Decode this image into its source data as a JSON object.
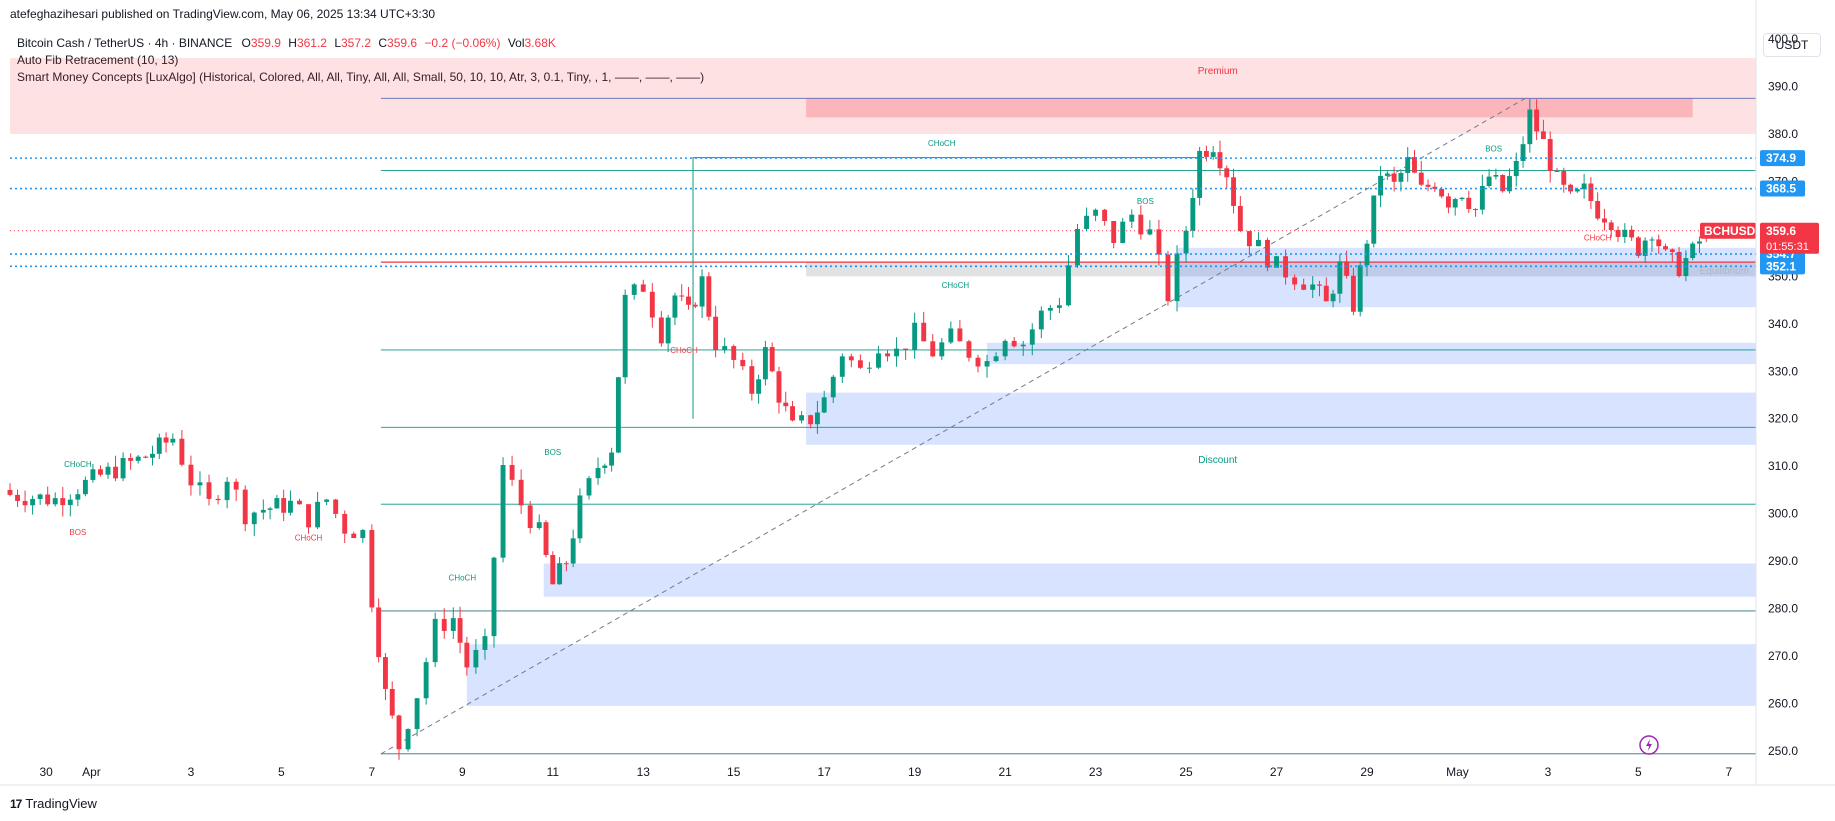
{
  "header": {
    "publisher": "atefeghazihesari published on TradingView.com, May 06, 2025 13:34 UTC+3:30"
  },
  "legend": {
    "symbol": "Bitcoin Cash / TetherUS · 4h · BINANCE",
    "o_label": "O",
    "o_value": "359.9",
    "h_label": "H",
    "h_value": "361.2",
    "l_label": "L",
    "l_value": "357.2",
    "c_label": "C",
    "c_value": "359.6",
    "change": "−0.2 (−0.06%)",
    "vol_label": "Vol",
    "vol_value": "3.68K",
    "indicator1": "Auto Fib Retracement (10, 13)",
    "indicator2": "Smart Money Concepts [LuxAlgo] (Historical, Colored, All, All, Tiny, All, All, Small, 50, 10, 10, Atr, 3, 0.1, Tiny, , 1, ——, ——, ——)"
  },
  "currency": "USDT",
  "footer": {
    "brand": "TradingView",
    "mark": "17"
  },
  "colors": {
    "up": "#089981",
    "down": "#f23645",
    "blue": "#2962ff",
    "tag_blue": "#2196f3",
    "tag_red": "#f23645"
  },
  "chart_data": {
    "type": "candlestick",
    "ylim": [
      246,
      404
    ],
    "xlim": [
      -0.4,
      8.1
    ],
    "y_ticks": [
      250,
      260,
      270,
      280,
      290,
      300,
      310,
      320,
      330,
      340,
      350,
      360,
      370,
      380,
      390,
      400
    ],
    "y_tick_labels": [
      "250.0",
      "260.0",
      "270.0",
      "280.0",
      "290.0",
      "300.0",
      "310.0",
      "320.0",
      "330.0",
      "340.0",
      "350.0",
      "360.0",
      "370.0",
      "380.0",
      "390.0",
      "400.0"
    ],
    "x_ticks": [
      {
        "label": "30",
        "day": -0.2
      },
      {
        "label": "Apr",
        "day": 0.8
      },
      {
        "label": "3",
        "day": 3
      },
      {
        "label": "5",
        "day": 5
      },
      {
        "label": "7",
        "day": 7
      },
      {
        "label": "9",
        "day": 9
      },
      {
        "label": "11",
        "day": 11
      },
      {
        "label": "13",
        "day": 13
      },
      {
        "label": "15",
        "day": 15
      },
      {
        "label": "17",
        "day": 17
      },
      {
        "label": "19",
        "day": 19
      },
      {
        "label": "21",
        "day": 21
      },
      {
        "label": "23",
        "day": 23
      },
      {
        "label": "25",
        "day": 25
      },
      {
        "label": "27",
        "day": 27
      },
      {
        "label": "29",
        "day": 29
      },
      {
        "label": "May",
        "day": 31
      },
      {
        "label": "3",
        "day": 33
      },
      {
        "label": "5",
        "day": 35
      },
      {
        "label": "7",
        "day": 37
      }
    ],
    "x_axis_days": [
      -1,
      37.6
    ],
    "close_path": [
      [
        -1,
        304
      ],
      [
        0,
        303
      ],
      [
        1,
        308
      ],
      [
        2,
        312
      ],
      [
        2.6,
        316
      ],
      [
        3,
        307
      ],
      [
        3.4,
        302
      ],
      [
        3.8,
        308
      ],
      [
        4.2,
        300
      ],
      [
        4.6,
        301
      ],
      [
        5.2,
        302
      ],
      [
        5.6,
        299
      ],
      [
        6,
        303
      ],
      [
        6.4,
        297
      ],
      [
        6.8,
        296
      ],
      [
        7,
        282
      ],
      [
        7.3,
        262
      ],
      [
        7.6,
        251
      ],
      [
        8,
        262
      ],
      [
        8.4,
        276
      ],
      [
        8.8,
        278
      ],
      [
        9.1,
        268
      ],
      [
        9.5,
        272
      ],
      [
        9.9,
        310
      ],
      [
        10.3,
        302
      ],
      [
        10.7,
        296
      ],
      [
        11,
        285
      ],
      [
        11.3,
        290
      ],
      [
        11.6,
        302
      ],
      [
        12,
        310
      ],
      [
        12.3,
        314
      ],
      [
        12.6,
        345
      ],
      [
        13,
        348
      ],
      [
        13.4,
        338
      ],
      [
        13.7,
        346
      ],
      [
        14,
        342
      ],
      [
        14.3,
        349
      ],
      [
        14.6,
        336
      ],
      [
        15,
        332
      ],
      [
        15.4,
        326
      ],
      [
        15.7,
        334
      ],
      [
        16,
        325
      ],
      [
        16.3,
        318
      ],
      [
        16.7,
        320
      ],
      [
        17,
        324
      ],
      [
        17.4,
        334
      ],
      [
        17.8,
        330
      ],
      [
        18.2,
        336
      ],
      [
        18.6,
        334
      ],
      [
        19,
        338
      ],
      [
        19.4,
        334
      ],
      [
        19.8,
        337
      ],
      [
        20.2,
        334
      ],
      [
        20.6,
        332
      ],
      [
        21,
        338
      ],
      [
        21.4,
        336
      ],
      [
        21.8,
        342
      ],
      [
        22.2,
        345
      ],
      [
        22.6,
        360
      ],
      [
        23,
        363
      ],
      [
        23.4,
        358
      ],
      [
        23.8,
        363
      ],
      [
        24.2,
        359
      ],
      [
        24.6,
        346
      ],
      [
        25,
        360
      ],
      [
        25.3,
        376
      ],
      [
        25.6,
        378
      ],
      [
        25.9,
        372
      ],
      [
        26.2,
        360
      ],
      [
        26.6,
        356
      ],
      [
        27,
        352
      ],
      [
        27.4,
        350
      ],
      [
        27.8,
        348
      ],
      [
        28.1,
        344
      ],
      [
        28.4,
        352
      ],
      [
        28.7,
        344
      ],
      [
        29,
        358
      ],
      [
        29.3,
        372
      ],
      [
        29.6,
        369
      ],
      [
        29.9,
        374
      ],
      [
        30.2,
        368
      ],
      [
        30.5,
        370
      ],
      [
        30.8,
        366
      ],
      [
        31.1,
        368
      ],
      [
        31.4,
        364
      ],
      [
        31.7,
        371
      ],
      [
        32,
        368
      ],
      [
        32.3,
        373
      ],
      [
        32.6,
        384
      ],
      [
        32.9,
        378
      ],
      [
        33.2,
        370
      ],
      [
        33.5,
        366
      ],
      [
        33.8,
        368
      ],
      [
        34.1,
        364
      ],
      [
        34.4,
        362
      ],
      [
        34.7,
        358
      ],
      [
        35,
        356
      ],
      [
        35.3,
        360
      ],
      [
        35.6,
        354
      ],
      [
        35.9,
        352
      ],
      [
        36.2,
        355
      ],
      [
        36.5,
        359.6
      ]
    ],
    "ohlc_last": {
      "o": 359.9,
      "h": 361.2,
      "l": 357.2,
      "c": 359.6
    },
    "levels": [
      {
        "price": 374.9,
        "label": "374.9"
      },
      {
        "price": 368.5,
        "label": "368.5"
      },
      {
        "price": 354.7,
        "label": "354.7"
      },
      {
        "price": 352.1,
        "label": "352.1"
      }
    ],
    "last_price_tag": {
      "symbol": "BCHUSDT",
      "price": "359.6",
      "countdown": "01:55:31"
    },
    "fib_levels": [
      387.5,
      372.3,
      353.0,
      334.5,
      318.2,
      302.0,
      279.5,
      249.4
    ],
    "zones": [
      {
        "label": "Premium",
        "from_day": -1,
        "to_day": 37.6,
        "low": 380,
        "high": 396
      },
      {
        "label": "Equilibrium",
        "from_day": 16.6,
        "to_day": 37.6,
        "low": 350,
        "high": 353
      },
      {
        "label": "Discount",
        "from_day": -1,
        "to_day": 37.6,
        "low": 0,
        "high": 0
      }
    ],
    "order_blocks": [
      {
        "from_day": 16.6,
        "to_day": 36.2,
        "low": 383.5,
        "high": 387.5,
        "kind": "bear"
      },
      {
        "from_day": 24.8,
        "to_day": 37.6,
        "low": 343.5,
        "high": 356,
        "kind": "bull"
      },
      {
        "from_day": 20.6,
        "to_day": 37.6,
        "low": 331.5,
        "high": 336,
        "kind": "bull"
      },
      {
        "from_day": 16.6,
        "to_day": 37.6,
        "low": 314.5,
        "high": 325.5,
        "kind": "bull"
      },
      {
        "from_day": 10.8,
        "to_day": 37.6,
        "low": 282.5,
        "high": 289.5,
        "kind": "bull"
      },
      {
        "from_day": 9.1,
        "to_day": 37.6,
        "low": 259.5,
        "high": 272.5,
        "kind": "bull"
      }
    ],
    "structure_labels": [
      {
        "text": "CHoCH",
        "day": 19.6,
        "price": 377.5,
        "color": "up"
      },
      {
        "text": "CHoCH",
        "day": 0.5,
        "price": 309.8,
        "color": "up"
      },
      {
        "text": "BOS",
        "day": 0.5,
        "price": 295.5,
        "color": "down"
      },
      {
        "text": "CHoCH",
        "day": 5.6,
        "price": 294.3,
        "color": "down"
      },
      {
        "text": "BOS",
        "day": 11,
        "price": 312.4,
        "color": "up"
      },
      {
        "text": "CHoCH",
        "day": 9,
        "price": 285.9,
        "color": "up"
      },
      {
        "text": "CHoCH",
        "day": 13.9,
        "price": 333.8,
        "color": "down"
      },
      {
        "text": "CHoCH",
        "day": 19.9,
        "price": 347.5,
        "color": "up"
      },
      {
        "text": "BOS",
        "day": 24.1,
        "price": 365.2,
        "color": "up"
      },
      {
        "text": "BOS",
        "day": 31.8,
        "price": 376.3,
        "color": "up"
      },
      {
        "text": "CHoCH",
        "day": 34.1,
        "price": 357.6,
        "color": "down"
      }
    ],
    "zone_labels": [
      {
        "text": "Premium",
        "day": 25.7,
        "price": 392.6,
        "color": "down"
      },
      {
        "text": "Equilibrium",
        "day": 36.9,
        "price": 350.5,
        "color": "muted"
      },
      {
        "text": "Discount",
        "day": 25.7,
        "price": 310.7,
        "color": "up"
      }
    ]
  }
}
